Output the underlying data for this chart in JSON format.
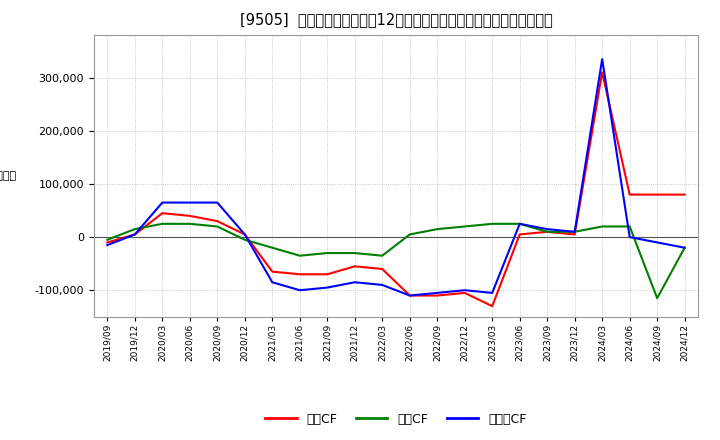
{
  "title": "[9505]  キャッシュフローの12か月移動合計の対前年同期増減額の推移",
  "labels": [
    "2019/09",
    "2019/12",
    "2020/03",
    "2020/06",
    "2020/09",
    "2020/12",
    "2021/03",
    "2021/06",
    "2021/09",
    "2021/12",
    "2022/03",
    "2022/06",
    "2022/09",
    "2022/12",
    "2023/03",
    "2023/06",
    "2023/09",
    "2023/12",
    "2024/03",
    "2024/06",
    "2024/09",
    "2024/12"
  ],
  "operating_cf": [
    -10000,
    5000,
    45000,
    40000,
    30000,
    5000,
    -65000,
    -70000,
    -70000,
    -55000,
    -60000,
    -110000,
    -110000,
    -105000,
    -130000,
    5000,
    10000,
    5000,
    310000,
    80000,
    80000,
    80000
  ],
  "investing_cf": [
    -5000,
    15000,
    25000,
    25000,
    20000,
    -5000,
    -20000,
    -35000,
    -30000,
    -30000,
    -35000,
    5000,
    15000,
    20000,
    25000,
    25000,
    10000,
    10000,
    20000,
    20000,
    -115000,
    -20000
  ],
  "free_cf": [
    -15000,
    5000,
    65000,
    65000,
    65000,
    5000,
    -85000,
    -100000,
    -95000,
    -85000,
    -90000,
    -110000,
    -105000,
    -100000,
    -105000,
    25000,
    15000,
    10000,
    335000,
    0,
    -10000,
    -20000
  ],
  "operating_color": "#ff0000",
  "investing_color": "#008000",
  "free_color": "#0000ff",
  "background_color": "#ffffff",
  "plot_bg_color": "#ffffff",
  "ylim": [
    -150000,
    380000
  ],
  "yticks": [
    -100000,
    0,
    100000,
    200000,
    300000
  ],
  "grid_color": "#bbbbbb",
  "title_fontsize": 10.5,
  "legend_labels": [
    "営業CF",
    "投資CF",
    "フリーCF"
  ]
}
